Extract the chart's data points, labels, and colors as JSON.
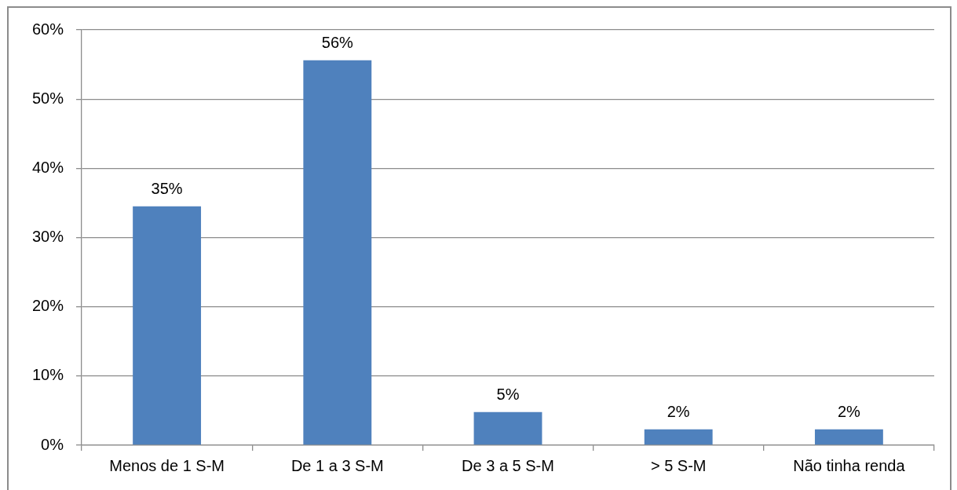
{
  "chart_data": {
    "type": "bar",
    "categories": [
      "Menos de 1 S-M",
      "De 1 a 3 S-M",
      "De 3 a 5 S-M",
      "> 5 S-M",
      "Não tinha renda"
    ],
    "values": [
      34.5,
      55.6,
      4.8,
      2.3,
      2.3
    ],
    "color": "#4f81bd",
    "value_labels": [
      "35%",
      "56%",
      "5%",
      "2%",
      "2%"
    ],
    "ylim": [
      0,
      60
    ],
    "yticks": [
      {
        "value": 0,
        "label": "0%"
      },
      {
        "value": 10,
        "label": "10%"
      },
      {
        "value": 20,
        "label": "20%"
      },
      {
        "value": 30,
        "label": "30%"
      },
      {
        "value": 40,
        "label": "40%"
      },
      {
        "value": 50,
        "label": "50%"
      },
      {
        "value": 60,
        "label": "60%"
      }
    ],
    "grid": "y"
  }
}
